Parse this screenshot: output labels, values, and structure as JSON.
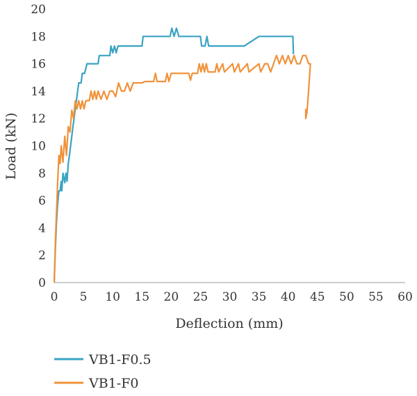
{
  "chart_data": {
    "type": "line",
    "title": "",
    "xlabel": "Deflection (mm)",
    "ylabel": "Load (kN)",
    "xlim": [
      0,
      60
    ],
    "ylim": [
      0,
      20
    ],
    "x_ticks": [
      "0",
      "5",
      "10",
      "15",
      "20",
      "25",
      "30",
      "35",
      "40",
      "45",
      "50",
      "55",
      "60"
    ],
    "y_ticks": [
      "0",
      "2",
      "4",
      "6",
      "8",
      "10",
      "12",
      "14",
      "16",
      "18",
      "20"
    ],
    "grid": false,
    "legend_position": "bottom-left",
    "series": [
      {
        "name": "VB1-F0.5",
        "color": "#3aa3c3",
        "points": [
          [
            0,
            0
          ],
          [
            0.2,
            2.5
          ],
          [
            0.4,
            4.5
          ],
          [
            0.6,
            5.8
          ],
          [
            0.8,
            6.7
          ],
          [
            1.0,
            6.7
          ],
          [
            1.2,
            7.4
          ],
          [
            1.3,
            6.7
          ],
          [
            1.5,
            8.0
          ],
          [
            1.8,
            7.3
          ],
          [
            2.0,
            8.0
          ],
          [
            2.2,
            7.4
          ],
          [
            2.4,
            8.7
          ],
          [
            2.6,
            9.3
          ],
          [
            2.8,
            10.0
          ],
          [
            3.0,
            10.7
          ],
          [
            3.2,
            11.4
          ],
          [
            3.4,
            12.0
          ],
          [
            3.6,
            12.7
          ],
          [
            3.8,
            13.3
          ],
          [
            4.0,
            14.0
          ],
          [
            4.2,
            14.6
          ],
          [
            4.6,
            14.6
          ],
          [
            4.8,
            15.3
          ],
          [
            5.2,
            15.3
          ],
          [
            5.6,
            16.0
          ],
          [
            7.5,
            16.0
          ],
          [
            7.7,
            16.6
          ],
          [
            9.5,
            16.6
          ],
          [
            9.7,
            17.3
          ],
          [
            10.0,
            16.8
          ],
          [
            10.3,
            17.3
          ],
          [
            10.6,
            16.8
          ],
          [
            10.9,
            17.3
          ],
          [
            15.0,
            17.3
          ],
          [
            15.2,
            18.0
          ],
          [
            19.8,
            18.0
          ],
          [
            20.1,
            18.6
          ],
          [
            20.5,
            18.0
          ],
          [
            20.9,
            18.6
          ],
          [
            21.3,
            18.0
          ],
          [
            25.0,
            18.0
          ],
          [
            25.2,
            17.3
          ],
          [
            25.8,
            17.3
          ],
          [
            26.1,
            18.0
          ],
          [
            26.4,
            17.3
          ],
          [
            32.5,
            17.3
          ],
          [
            35.0,
            18.0
          ],
          [
            40.8,
            18.0
          ],
          [
            40.9,
            16.7
          ]
        ]
      },
      {
        "name": "VB1-F0",
        "color": "#f0923a",
        "points": [
          [
            0,
            0
          ],
          [
            0.2,
            3.0
          ],
          [
            0.4,
            5.3
          ],
          [
            0.6,
            7.4
          ],
          [
            0.8,
            9.3
          ],
          [
            1.0,
            8.7
          ],
          [
            1.2,
            10.0
          ],
          [
            1.5,
            8.8
          ],
          [
            1.8,
            10.7
          ],
          [
            2.1,
            9.3
          ],
          [
            2.4,
            11.4
          ],
          [
            2.7,
            11.0
          ],
          [
            3.0,
            12.6
          ],
          [
            3.3,
            12.0
          ],
          [
            3.6,
            13.3
          ],
          [
            3.9,
            12.7
          ],
          [
            4.2,
            13.3
          ],
          [
            4.5,
            12.7
          ],
          [
            4.8,
            13.3
          ],
          [
            5.1,
            12.7
          ],
          [
            5.4,
            13.3
          ],
          [
            6.0,
            13.3
          ],
          [
            6.3,
            14.0
          ],
          [
            6.6,
            13.4
          ],
          [
            6.9,
            14.0
          ],
          [
            7.2,
            13.4
          ],
          [
            7.5,
            14.0
          ],
          [
            8.0,
            13.4
          ],
          [
            8.5,
            14.0
          ],
          [
            9.0,
            13.4
          ],
          [
            9.5,
            14.0
          ],
          [
            10.0,
            14.0
          ],
          [
            10.5,
            13.6
          ],
          [
            11.0,
            14.6
          ],
          [
            11.5,
            14.0
          ],
          [
            12.0,
            14.0
          ],
          [
            12.5,
            14.6
          ],
          [
            13.0,
            14.0
          ],
          [
            13.5,
            14.6
          ],
          [
            14.0,
            14.6
          ],
          [
            15.0,
            14.6
          ],
          [
            15.5,
            14.7
          ],
          [
            17.0,
            14.7
          ],
          [
            17.3,
            15.3
          ],
          [
            17.6,
            14.7
          ],
          [
            19.0,
            14.7
          ],
          [
            19.3,
            15.3
          ],
          [
            19.6,
            14.7
          ],
          [
            20.0,
            15.3
          ],
          [
            23.0,
            15.3
          ],
          [
            23.3,
            14.8
          ],
          [
            23.6,
            15.3
          ],
          [
            24.5,
            15.3
          ],
          [
            24.8,
            16.0
          ],
          [
            25.1,
            15.4
          ],
          [
            25.4,
            16.0
          ],
          [
            25.7,
            15.4
          ],
          [
            26.0,
            16.0
          ],
          [
            26.3,
            15.4
          ],
          [
            27.5,
            15.4
          ],
          [
            27.8,
            16.0
          ],
          [
            28.1,
            15.4
          ],
          [
            28.8,
            16.0
          ],
          [
            29.1,
            15.4
          ],
          [
            30.5,
            16.0
          ],
          [
            30.8,
            15.4
          ],
          [
            31.5,
            16.0
          ],
          [
            31.8,
            15.4
          ],
          [
            33.0,
            16.0
          ],
          [
            33.3,
            15.4
          ],
          [
            35.0,
            16.0
          ],
          [
            35.3,
            15.4
          ],
          [
            36.0,
            16.0
          ],
          [
            36.5,
            16.0
          ],
          [
            37.0,
            15.4
          ],
          [
            37.5,
            16.0
          ],
          [
            38.0,
            16.6
          ],
          [
            38.5,
            16.0
          ],
          [
            39.0,
            16.6
          ],
          [
            39.5,
            16.0
          ],
          [
            40.0,
            16.6
          ],
          [
            40.5,
            16.0
          ],
          [
            41.0,
            16.6
          ],
          [
            41.5,
            16.0
          ],
          [
            42.0,
            16.0
          ],
          [
            42.5,
            16.6
          ],
          [
            43.0,
            16.6
          ],
          [
            43.5,
            16.0
          ],
          [
            43.8,
            16.0
          ],
          [
            43.4,
            13.5
          ],
          [
            43.2,
            12.4
          ],
          [
            43.0,
            12.0
          ],
          [
            43.0,
            12.7
          ]
        ]
      }
    ]
  }
}
